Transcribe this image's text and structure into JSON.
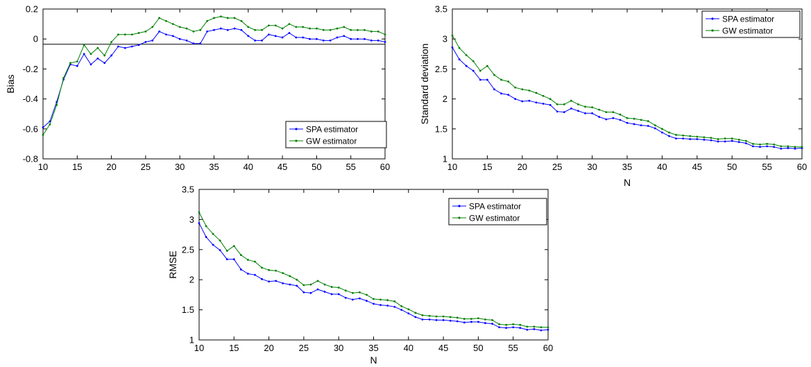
{
  "chart_data": [
    {
      "id": "bias",
      "type": "line",
      "xlabel": "",
      "ylabel": "Bias",
      "xlim": [
        10,
        60
      ],
      "ylim": [
        -0.8,
        0.2
      ],
      "xticks": [
        10,
        15,
        20,
        25,
        30,
        35,
        40,
        45,
        50,
        55,
        60
      ],
      "yticks": [
        -0.8,
        -0.6,
        -0.4,
        -0.2,
        0,
        0.2
      ],
      "ytick_labels": [
        "-0.8",
        "-0.6",
        "-0.4",
        "-0.2",
        "0",
        "0.2"
      ],
      "grid": false,
      "legend": "bottom-right",
      "reference_line_y": -0.035,
      "x": [
        10,
        11,
        12,
        13,
        14,
        15,
        16,
        17,
        18,
        19,
        20,
        21,
        22,
        23,
        24,
        25,
        26,
        27,
        28,
        29,
        30,
        31,
        32,
        33,
        34,
        35,
        36,
        37,
        38,
        39,
        40,
        41,
        42,
        43,
        44,
        45,
        46,
        47,
        48,
        49,
        50,
        51,
        52,
        53,
        54,
        55,
        56,
        57,
        58,
        59,
        60
      ],
      "series": [
        {
          "name": "SPA estimator",
          "color": "#0000ff",
          "values": [
            -0.59,
            -0.55,
            -0.42,
            -0.27,
            -0.17,
            -0.18,
            -0.1,
            -0.17,
            -0.13,
            -0.16,
            -0.11,
            -0.05,
            -0.06,
            -0.05,
            -0.04,
            -0.02,
            -0.01,
            0.05,
            0.03,
            0.02,
            0.0,
            -0.01,
            -0.03,
            -0.03,
            0.05,
            0.06,
            0.07,
            0.06,
            0.07,
            0.06,
            0.02,
            -0.01,
            -0.01,
            0.03,
            0.02,
            0.01,
            0.04,
            0.01,
            0.01,
            0.0,
            0.0,
            -0.01,
            -0.01,
            0.01,
            0.02,
            0.0,
            0.0,
            0.0,
            -0.01,
            -0.01,
            -0.02
          ]
        },
        {
          "name": "GW estimator",
          "color": "#007f00",
          "values": [
            -0.64,
            -0.57,
            -0.44,
            -0.26,
            -0.16,
            -0.15,
            -0.04,
            -0.1,
            -0.06,
            -0.11,
            -0.02,
            0.03,
            0.03,
            0.03,
            0.04,
            0.05,
            0.08,
            0.14,
            0.12,
            0.1,
            0.08,
            0.07,
            0.05,
            0.06,
            0.12,
            0.14,
            0.15,
            0.14,
            0.14,
            0.12,
            0.08,
            0.06,
            0.06,
            0.09,
            0.09,
            0.07,
            0.1,
            0.08,
            0.08,
            0.07,
            0.07,
            0.06,
            0.06,
            0.07,
            0.08,
            0.06,
            0.06,
            0.06,
            0.05,
            0.05,
            0.03
          ]
        }
      ]
    },
    {
      "id": "std",
      "type": "line",
      "xlabel": "N",
      "ylabel": "Standard deviation",
      "xlim": [
        10,
        60
      ],
      "ylim": [
        1,
        3.5
      ],
      "xticks": [
        10,
        15,
        20,
        25,
        30,
        35,
        40,
        45,
        50,
        55,
        60
      ],
      "yticks": [
        1,
        1.5,
        2,
        2.5,
        3,
        3.5
      ],
      "ytick_labels": [
        "1",
        "1.5",
        "2",
        "2.5",
        "3",
        "3.5"
      ],
      "grid": false,
      "legend": "top-right",
      "x": [
        10,
        11,
        12,
        13,
        14,
        15,
        16,
        17,
        18,
        19,
        20,
        21,
        22,
        23,
        24,
        25,
        26,
        27,
        28,
        29,
        30,
        31,
        32,
        33,
        34,
        35,
        36,
        37,
        38,
        39,
        40,
        41,
        42,
        43,
        44,
        45,
        46,
        47,
        48,
        49,
        50,
        51,
        52,
        53,
        54,
        55,
        56,
        57,
        58,
        59,
        60
      ],
      "series": [
        {
          "name": "SPA estimator",
          "color": "#0000ff",
          "values": [
            2.86,
            2.66,
            2.55,
            2.47,
            2.32,
            2.32,
            2.16,
            2.09,
            2.07,
            2.0,
            1.96,
            1.97,
            1.94,
            1.92,
            1.9,
            1.79,
            1.78,
            1.84,
            1.8,
            1.76,
            1.76,
            1.7,
            1.66,
            1.68,
            1.65,
            1.6,
            1.58,
            1.56,
            1.55,
            1.51,
            1.44,
            1.38,
            1.34,
            1.34,
            1.33,
            1.33,
            1.32,
            1.31,
            1.29,
            1.29,
            1.3,
            1.28,
            1.26,
            1.21,
            1.2,
            1.21,
            1.2,
            1.17,
            1.18,
            1.17,
            1.18
          ]
        },
        {
          "name": "GW estimator",
          "color": "#007f00",
          "values": [
            3.06,
            2.85,
            2.73,
            2.63,
            2.47,
            2.55,
            2.4,
            2.32,
            2.29,
            2.19,
            2.16,
            2.14,
            2.1,
            2.05,
            2.0,
            1.91,
            1.91,
            1.97,
            1.91,
            1.87,
            1.86,
            1.82,
            1.78,
            1.78,
            1.74,
            1.68,
            1.67,
            1.65,
            1.63,
            1.56,
            1.5,
            1.44,
            1.4,
            1.39,
            1.38,
            1.37,
            1.36,
            1.35,
            1.33,
            1.34,
            1.34,
            1.32,
            1.3,
            1.25,
            1.24,
            1.25,
            1.24,
            1.21,
            1.21,
            1.2,
            1.2
          ]
        }
      ]
    },
    {
      "id": "rmse",
      "type": "line",
      "xlabel": "N",
      "ylabel": "RMSE",
      "xlim": [
        10,
        60
      ],
      "ylim": [
        1,
        3.5
      ],
      "xticks": [
        10,
        15,
        20,
        25,
        30,
        35,
        40,
        45,
        50,
        55,
        60
      ],
      "yticks": [
        1,
        1.5,
        2,
        2.5,
        3,
        3.5
      ],
      "ytick_labels": [
        "1",
        "1.5",
        "2",
        "2.5",
        "3",
        "3.5"
      ],
      "grid": false,
      "legend": "top-right",
      "x": [
        10,
        11,
        12,
        13,
        14,
        15,
        16,
        17,
        18,
        19,
        20,
        21,
        22,
        23,
        24,
        25,
        26,
        27,
        28,
        29,
        30,
        31,
        32,
        33,
        34,
        35,
        36,
        37,
        38,
        39,
        40,
        41,
        42,
        43,
        44,
        45,
        46,
        47,
        48,
        49,
        50,
        51,
        52,
        53,
        54,
        55,
        56,
        57,
        58,
        59,
        60
      ],
      "series": [
        {
          "name": "SPA estimator",
          "color": "#0000ff",
          "values": [
            2.94,
            2.71,
            2.58,
            2.49,
            2.34,
            2.34,
            2.17,
            2.1,
            2.08,
            2.01,
            1.97,
            1.98,
            1.94,
            1.92,
            1.9,
            1.79,
            1.78,
            1.84,
            1.8,
            1.76,
            1.76,
            1.7,
            1.67,
            1.69,
            1.65,
            1.6,
            1.58,
            1.57,
            1.55,
            1.5,
            1.44,
            1.38,
            1.34,
            1.34,
            1.33,
            1.33,
            1.32,
            1.31,
            1.29,
            1.3,
            1.3,
            1.28,
            1.27,
            1.21,
            1.2,
            1.21,
            1.2,
            1.17,
            1.18,
            1.16,
            1.17
          ]
        },
        {
          "name": "GW estimator",
          "color": "#007f00",
          "values": [
            3.12,
            2.89,
            2.76,
            2.65,
            2.48,
            2.56,
            2.41,
            2.33,
            2.3,
            2.2,
            2.16,
            2.15,
            2.11,
            2.06,
            2.0,
            1.91,
            1.92,
            1.98,
            1.92,
            1.88,
            1.87,
            1.82,
            1.78,
            1.79,
            1.75,
            1.68,
            1.67,
            1.66,
            1.64,
            1.56,
            1.51,
            1.45,
            1.41,
            1.4,
            1.39,
            1.39,
            1.38,
            1.37,
            1.35,
            1.35,
            1.36,
            1.34,
            1.33,
            1.26,
            1.25,
            1.26,
            1.25,
            1.22,
            1.22,
            1.21,
            1.21
          ]
        }
      ]
    }
  ]
}
